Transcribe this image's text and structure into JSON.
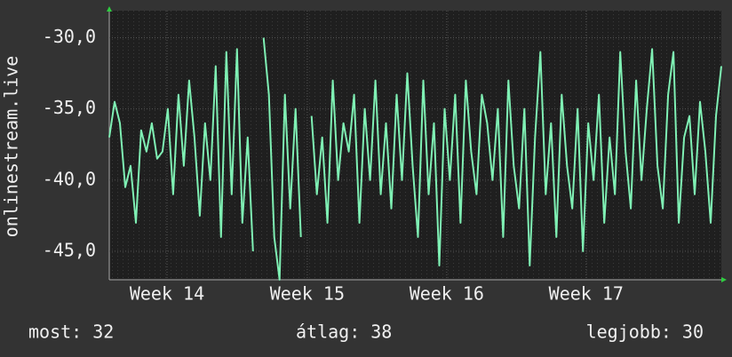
{
  "chart_data": {
    "type": "line",
    "ylabel": "onlinestream.live",
    "x": [
      0,
      1,
      2,
      3,
      4,
      5,
      6,
      7,
      8,
      9,
      10,
      11,
      12,
      13,
      14,
      15,
      16,
      17,
      18,
      19,
      20,
      21,
      22,
      23,
      24,
      25,
      26,
      27,
      28,
      29,
      30,
      31,
      32,
      33,
      34,
      35,
      36,
      37,
      38,
      39,
      40,
      41,
      42,
      43,
      44,
      45,
      46,
      47,
      48,
      49,
      50,
      51,
      52,
      53,
      54,
      55,
      56,
      57,
      58,
      59,
      60,
      61,
      62,
      63,
      64,
      65,
      66,
      67,
      68,
      69,
      70,
      71,
      72,
      73,
      74,
      75,
      76,
      77,
      78,
      79,
      80,
      81,
      82,
      83,
      84,
      85,
      86,
      87,
      88,
      89,
      90,
      91,
      92,
      93,
      94,
      95,
      96,
      97,
      98,
      99,
      100,
      101,
      102,
      103,
      104,
      105,
      106,
      107,
      108,
      109,
      110,
      111,
      112,
      113,
      114,
      115
    ],
    "series": [
      {
        "color": "#7ff0b4",
        "values": [
          -37,
          -34.5,
          -36,
          -40.5,
          -39,
          -43,
          -36.5,
          -38,
          -36,
          -38.5,
          -38,
          -35,
          -41,
          -34,
          -39,
          -33,
          -37,
          -42.5,
          -36,
          -40,
          -32,
          -44,
          -31,
          -41,
          -30.8,
          -43,
          -37,
          -45,
          null,
          -30,
          -34,
          -44,
          -47,
          -34,
          -42,
          -35,
          -44,
          null,
          -35.5,
          -41,
          -37,
          -43,
          -33,
          -40,
          -36,
          -38,
          -34,
          -43,
          -35,
          -40,
          -33,
          -41,
          -36,
          -42,
          -34,
          -40,
          -32.5,
          -39,
          -44,
          -33,
          -41,
          -36,
          -46,
          -35,
          -40,
          -34,
          -43,
          -33,
          -38,
          -41,
          -34,
          -36,
          -40,
          -35,
          -44,
          -33,
          -39,
          -42,
          -35,
          -46,
          -37,
          -31,
          -41,
          -36,
          -44,
          -34,
          -39,
          -42,
          -35,
          -45,
          -36,
          -40,
          -34,
          -43,
          -37,
          -41,
          -31,
          -38,
          -42,
          -33,
          -40,
          -35,
          -30.8,
          -39,
          -42,
          -34,
          -31,
          -43,
          -37,
          -35.5,
          -41,
          -34.5,
          -38,
          -43,
          -35.5,
          -32
        ]
      }
    ],
    "xlim": [
      0,
      115
    ],
    "xticks": [
      {
        "value": 10.85,
        "label": "Week 14"
      },
      {
        "value": 37.2,
        "label": "Week 15"
      },
      {
        "value": 63.4,
        "label": "Week 16"
      },
      {
        "value": 89.6,
        "label": "Week 17"
      }
    ],
    "ylim": [
      -47,
      -28.1
    ],
    "yticks": [
      {
        "value": -45,
        "label": "-45,0"
      },
      {
        "value": -40,
        "label": "-40,0"
      },
      {
        "value": -35,
        "label": "-35,0"
      },
      {
        "value": -30,
        "label": "-30,0"
      }
    ],
    "grid": true,
    "stats": [
      {
        "label": "most:",
        "value": 32
      },
      {
        "label": "átlag:",
        "value": 38
      },
      {
        "label": "legjobb:",
        "value": 30
      }
    ]
  }
}
